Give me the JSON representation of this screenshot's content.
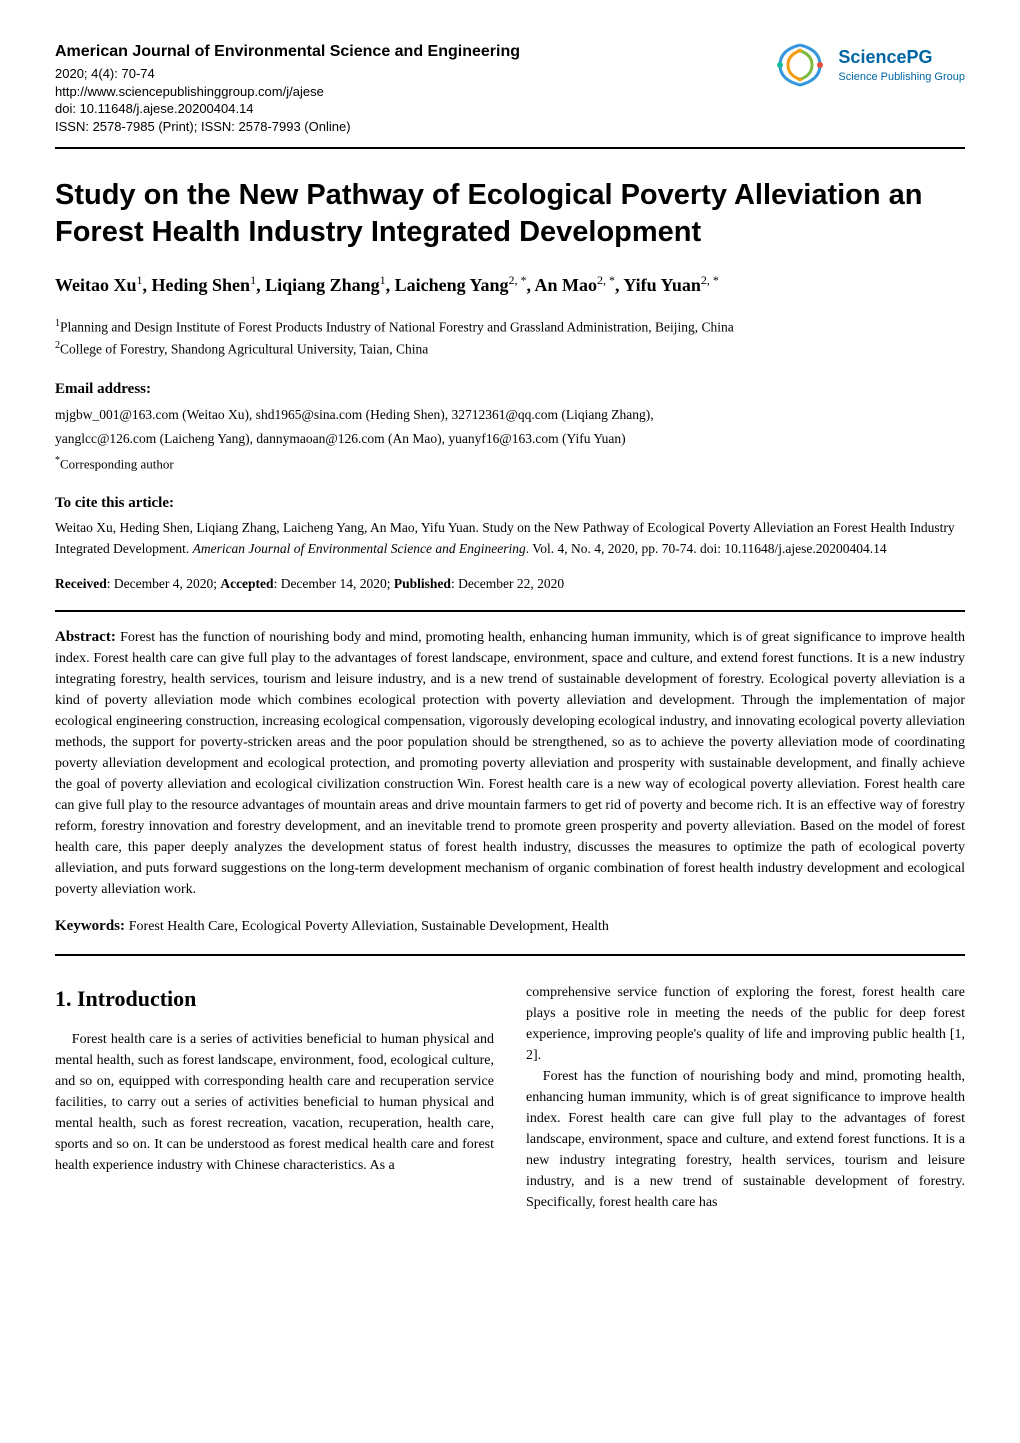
{
  "journal": {
    "name": "American Journal of Environmental Science and Engineering",
    "issue": "2020; 4(4): 70-74",
    "url": "http://www.sciencepublishinggroup.com/j/ajese",
    "doi": "doi: 10.11648/j.ajese.20200404.14",
    "issn": "ISSN: 2578-7985 (Print); ISSN: 2578-7993 (Online)"
  },
  "publisher": {
    "name": "SciencePG",
    "tagline": "Science Publishing Group",
    "logo_colors": [
      "#7fb942",
      "#f39c12",
      "#e74c3c",
      "#9b59b6",
      "#3498db",
      "#1abc9c"
    ],
    "text_color": "#0066a4"
  },
  "paper": {
    "title": "Study on the New Pathway of Ecological Poverty Alleviation an Forest Health Industry Integrated Development",
    "authors_html": "Weitao Xu<sup>1</sup>, Heding Shen<sup>1</sup>, Liqiang Zhang<sup>1</sup>, Laicheng Yang<sup>2, *</sup>, An Mao<sup>2, *</sup>, Yifu Yuan<sup>2, *</sup>"
  },
  "affiliations": {
    "aff1": "Planning and Design Institute of Forest Products Industry of National Forestry and Grassland Administration, Beijing, China",
    "aff1_sup": "1",
    "aff2": "College of Forestry, Shandong Agricultural University, Taian, China",
    "aff2_sup": "2"
  },
  "email_section": {
    "label": "Email address:",
    "line1": "mjgbw_001@163.com (Weitao Xu), shd1965@sina.com (Heding Shen), 32712361@qq.com (Liqiang Zhang),",
    "line2": "yanglcc@126.com (Laicheng Yang), dannymaoan@126.com (An Mao), yuanyf16@163.com (Yifu Yuan)",
    "corresponding": "Corresponding author",
    "corresponding_sup": "*"
  },
  "cite": {
    "label": "To cite this article:",
    "authors": "Weitao Xu, Heding Shen, Liqiang Zhang, Laicheng Yang, An Mao, Yifu Yuan. Study on the New Pathway of Ecological Poverty Alleviation an Forest Health Industry Integrated Development. ",
    "journal_italic": "American Journal of Environmental Science and Engineering",
    "rest": ". Vol. 4, No. 4, 2020, pp. 70-74. doi: 10.11648/j.ajese.20200404.14"
  },
  "dates": {
    "received_label": "Received",
    "received": ": December 4, 2020; ",
    "accepted_label": "Accepted",
    "accepted": ": December 14, 2020; ",
    "published_label": "Published",
    "published": ": December 22, 2020"
  },
  "abstract": {
    "label": "Abstract: ",
    "text": "Forest has the function of nourishing body and mind, promoting health, enhancing human immunity, which is of great significance to improve health index. Forest health care can give full play to the advantages of forest landscape, environment, space and culture, and extend forest functions. It is a new industry integrating forestry, health services, tourism and leisure industry, and is a new trend of sustainable development of forestry. Ecological poverty alleviation is a kind of poverty alleviation mode which combines ecological protection with poverty alleviation and development. Through the implementation of major ecological engineering construction, increasing ecological compensation, vigorously developing ecological industry, and innovating ecological poverty alleviation methods, the support for poverty-stricken areas and the poor population should be strengthened, so as to achieve the poverty alleviation mode of coordinating poverty alleviation development and ecological protection, and promoting poverty alleviation and prosperity with sustainable development, and finally achieve the goal of poverty alleviation and ecological civilization construction Win. Forest health care is a new way of ecological poverty alleviation. Forest health care can give full play to the resource advantages of mountain areas and drive mountain farmers to get rid of poverty and become rich. It is an effective way of forestry reform, forestry innovation and forestry development, and an inevitable trend to promote green prosperity and poverty alleviation. Based on the model of forest health care, this paper deeply analyzes the development status of forest health industry, discusses the measures to optimize the path of ecological poverty alleviation, and puts forward suggestions on the long-term development mechanism of organic combination of forest health industry development and ecological poverty alleviation work."
  },
  "keywords": {
    "label": "Keywords: ",
    "text": "Forest Health Care, Ecological Poverty Alleviation, Sustainable Development, Health"
  },
  "body": {
    "section1_heading": "1. Introduction",
    "col1_p1": "Forest health care is a series of activities beneficial to human physical and mental health, such as forest landscape, environment, food, ecological culture, and so on, equipped with corresponding health care and recuperation service facilities, to carry out a series of activities beneficial to human physical and mental health, such as forest recreation, vacation, recuperation, health care, sports and so on. It can be understood as forest medical health care and forest health experience industry with Chinese characteristics. As a",
    "col2_p1": "comprehensive service function of exploring the forest, forest health care plays a positive role in meeting the needs of the public for deep forest experience, improving people's quality of life and improving public health [1, 2].",
    "col2_p2": "Forest has the function of nourishing body and mind, promoting health, enhancing human immunity, which is of great significance to improve health index. Forest health care can give full play to the advantages of forest landscape, environment, space and culture, and extend forest functions. It is a new industry integrating forestry, health services, tourism and leisure industry, and is a new trend of sustainable development of forestry. Specifically, forest health care has"
  },
  "colors": {
    "text": "#000000",
    "background": "#ffffff",
    "rule": "#000000",
    "publisher_text": "#0066a4"
  }
}
